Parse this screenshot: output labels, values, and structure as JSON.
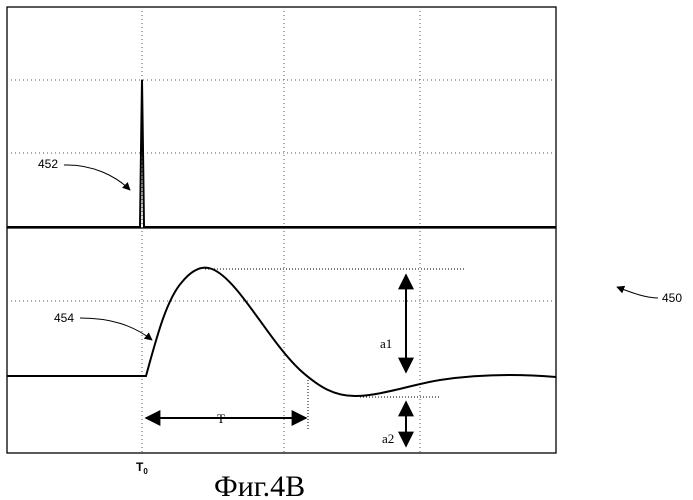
{
  "labels": {
    "figure_ref": "450",
    "pulse_ref": "452",
    "response_ref": "454",
    "period": "T",
    "amplitude_1": "a1",
    "amplitude_2": "a2",
    "t0_main": "T",
    "t0_sub": "0"
  },
  "caption": "Фиг.4В"
}
